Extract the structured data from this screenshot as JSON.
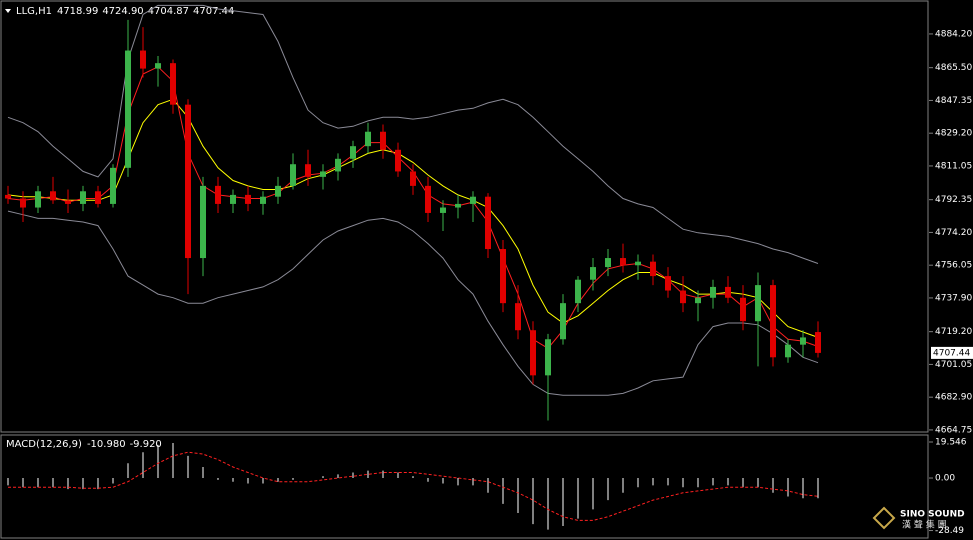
{
  "chart_data": [
    {
      "type": "candlestick",
      "title": "LLG,H1",
      "info": [
        {
          "value": 4718.99,
          "label": "4718.99"
        },
        {
          "value": 4724.9,
          "label": "4724.90"
        },
        {
          "value": 4704.87,
          "label": "4704.87"
        },
        {
          "value": 4707.44,
          "label": "4707.44"
        }
      ],
      "open": [
        4795,
        4793,
        4788,
        4797,
        4792,
        4790,
        4797,
        4790,
        4810,
        4875,
        4865,
        4868,
        4845,
        4760,
        4800,
        4790,
        4795,
        4790,
        4794,
        4800,
        4812,
        4805,
        4808,
        4815,
        4822,
        4830,
        4820,
        4808,
        4800,
        4785,
        4788,
        4790,
        4794,
        4765,
        4735,
        4720,
        4695,
        4715,
        4735,
        4748,
        4755,
        4760,
        4756,
        4758,
        4750,
        4742,
        4735,
        4738,
        4744,
        4738,
        4725,
        4745,
        4705,
        4712,
        4718.99
      ],
      "high": [
        4800,
        4797,
        4800,
        4805,
        4798,
        4800,
        4800,
        4812,
        4892,
        4888,
        4872,
        4870,
        4848,
        4805,
        4805,
        4798,
        4800,
        4797,
        4805,
        4818,
        4820,
        4812,
        4818,
        4825,
        4835,
        4834,
        4824,
        4812,
        4805,
        4792,
        4795,
        4797,
        4796,
        4770,
        4745,
        4725,
        4718,
        4740,
        4750,
        4760,
        4765,
        4768,
        4762,
        4762,
        4755,
        4750,
        4742,
        4748,
        4750,
        4745,
        4752,
        4748,
        4715,
        4720,
        4724.9
      ],
      "low": [
        4790,
        4780,
        4785,
        4790,
        4785,
        4786,
        4788,
        4788,
        4805,
        4860,
        4855,
        4840,
        4740,
        4750,
        4785,
        4785,
        4786,
        4784,
        4790,
        4798,
        4800,
        4798,
        4803,
        4810,
        4818,
        4815,
        4805,
        4795,
        4780,
        4775,
        4782,
        4780,
        4760,
        4730,
        4715,
        4690,
        4670,
        4712,
        4730,
        4742,
        4750,
        4752,
        4748,
        4745,
        4738,
        4730,
        4725,
        4732,
        4735,
        4720,
        4700,
        4700,
        4702,
        4705,
        4704.87
      ],
      "close": [
        4793,
        4788,
        4797,
        4792,
        4790,
        4797,
        4790,
        4810,
        4875,
        4865,
        4868,
        4845,
        4760,
        4800,
        4790,
        4795,
        4790,
        4794,
        4800,
        4812,
        4805,
        4808,
        4815,
        4822,
        4830,
        4820,
        4808,
        4800,
        4785,
        4788,
        4790,
        4794,
        4765,
        4735,
        4720,
        4695,
        4715,
        4735,
        4748,
        4755,
        4760,
        4756,
        4758,
        4750,
        4742,
        4735,
        4738,
        4744,
        4738,
        4725,
        4745,
        4705,
        4712,
        4716,
        4707.44
      ],
      "up_color": "#3cb44b",
      "down_color": "#e00000",
      "lines": [
        {
          "color": "#8a8a96",
          "values": [
            4838,
            4835,
            4830,
            4822,
            4815,
            4808,
            4805,
            4815,
            4870,
            4895,
            4900,
            4900,
            4900,
            4900,
            4898,
            4897,
            4896,
            4895,
            4880,
            4860,
            4842,
            4835,
            4832,
            4833,
            4836,
            4838,
            4838,
            4837,
            4838,
            4840,
            4842,
            4843,
            4846,
            4848,
            4845,
            4838,
            4830,
            4822,
            4815,
            4808,
            4800,
            4793,
            4790,
            4788,
            4782,
            4776,
            4774,
            4773,
            4772,
            4770,
            4768,
            4765,
            4763,
            4760,
            4757
          ]
        },
        {
          "color": "#8a8a96",
          "values": [
            4786,
            4784,
            4782,
            4782,
            4781,
            4780,
            4778,
            4765,
            4750,
            4745,
            4740,
            4738,
            4735,
            4735,
            4738,
            4740,
            4742,
            4744,
            4748,
            4754,
            4762,
            4770,
            4775,
            4778,
            4781,
            4782,
            4780,
            4775,
            4768,
            4760,
            4748,
            4740,
            4725,
            4712,
            4700,
            4690,
            4685,
            4684,
            4684,
            4684,
            4684,
            4685,
            4688,
            4692,
            4693,
            4694,
            4712,
            4722,
            4724,
            4724,
            4723,
            4718,
            4712,
            4705,
            4702
          ]
        },
        {
          "color": "#ffff00",
          "values": [
            4795,
            4794,
            4794,
            4793,
            4792,
            4792,
            4792,
            4795,
            4815,
            4835,
            4845,
            4848,
            4838,
            4822,
            4810,
            4803,
            4800,
            4798,
            4798,
            4800,
            4804,
            4806,
            4810,
            4814,
            4818,
            4820,
            4818,
            4813,
            4806,
            4800,
            4795,
            4792,
            4788,
            4778,
            4765,
            4745,
            4730,
            4724,
            4728,
            4735,
            4742,
            4748,
            4752,
            4752,
            4748,
            4745,
            4740,
            4740,
            4741,
            4740,
            4738,
            4730,
            4722,
            4719,
            4716
          ]
        },
        {
          "color": "#ff2020",
          "values": [
            4793,
            4792,
            4793,
            4794,
            4791,
            4793,
            4793,
            4800,
            4840,
            4862,
            4866,
            4858,
            4818,
            4800,
            4795,
            4794,
            4793,
            4793,
            4796,
            4803,
            4806,
            4807,
            4811,
            4817,
            4824,
            4824,
            4816,
            4808,
            4795,
            4790,
            4789,
            4791,
            4780,
            4760,
            4740,
            4715,
            4710,
            4720,
            4735,
            4746,
            4754,
            4756,
            4757,
            4754,
            4748,
            4740,
            4738,
            4740,
            4740,
            4733,
            4738,
            4722,
            4715,
            4714,
            4711
          ]
        }
      ],
      "last_price": {
        "value": 4707.44,
        "label": "4707.44"
      },
      "ylim": [
        4663.6,
        4901.9
      ],
      "yticks": [
        {
          "value": 4884.2,
          "label": "4884.20"
        },
        {
          "value": 4865.5,
          "label": "4865.50"
        },
        {
          "value": 4847.35,
          "label": "4847.35"
        },
        {
          "value": 4829.2,
          "label": "4829.20"
        },
        {
          "value": 4811.05,
          "label": "4811.05"
        },
        {
          "value": 4792.35,
          "label": "4792.35"
        },
        {
          "value": 4774.2,
          "label": "4774.20"
        },
        {
          "value": 4756.05,
          "label": "4756.05"
        },
        {
          "value": 4737.9,
          "label": "4737.90"
        },
        {
          "value": 4719.2,
          "label": "4719.20"
        },
        {
          "value": 4701.05,
          "label": "4701.05"
        },
        {
          "value": 4682.9,
          "label": "4682.90"
        },
        {
          "value": 4664.75,
          "label": "4664.75"
        }
      ]
    },
    {
      "type": "macd",
      "title": "MACD(12,26,9)",
      "info": [
        {
          "value": -10.98,
          "label": "-10.980"
        },
        {
          "value": -9.92,
          "label": "-9.920"
        }
      ],
      "histogram": [
        -4,
        -5,
        -5,
        -5,
        -6,
        -6,
        -6,
        -3,
        8,
        14,
        18,
        19,
        12,
        6,
        -1,
        -2,
        -3,
        -3,
        -2,
        -1,
        0,
        1,
        2,
        3,
        4,
        4,
        3,
        1,
        -2,
        -3,
        -4,
        -4,
        -8,
        -14,
        -19,
        -25,
        -28,
        -26,
        -22,
        -17,
        -12,
        -8,
        -5,
        -4,
        -4,
        -5,
        -5,
        -4,
        -4,
        -5,
        -5,
        -8,
        -10,
        -11,
        -10.98
      ],
      "signal": [
        -5,
        -5,
        -5,
        -5,
        -5,
        -5.5,
        -5.5,
        -5,
        -2,
        3,
        8,
        12,
        14,
        13,
        10,
        6,
        3,
        0,
        -2,
        -2,
        -2,
        -1,
        0,
        1,
        2,
        3,
        3,
        3,
        2,
        1,
        0,
        -1,
        -2,
        -5,
        -8,
        -12,
        -17,
        -21,
        -23,
        -23,
        -21,
        -18,
        -15,
        -12,
        -10,
        -8,
        -7,
        -6,
        -5,
        -5,
        -5,
        -6,
        -7,
        -9,
        -9.92
      ],
      "histogram_color": "#ffffff",
      "signal_color": "#ff2020",
      "ylim": [
        -32,
        22.8
      ],
      "yticks": [
        19.546,
        {
          "value": 0,
          "label": "0.00"
        },
        -28.49
      ]
    }
  ],
  "watermark": {
    "brand": "SINO SOUND",
    "subtitle": "漢 聲 集 團"
  }
}
